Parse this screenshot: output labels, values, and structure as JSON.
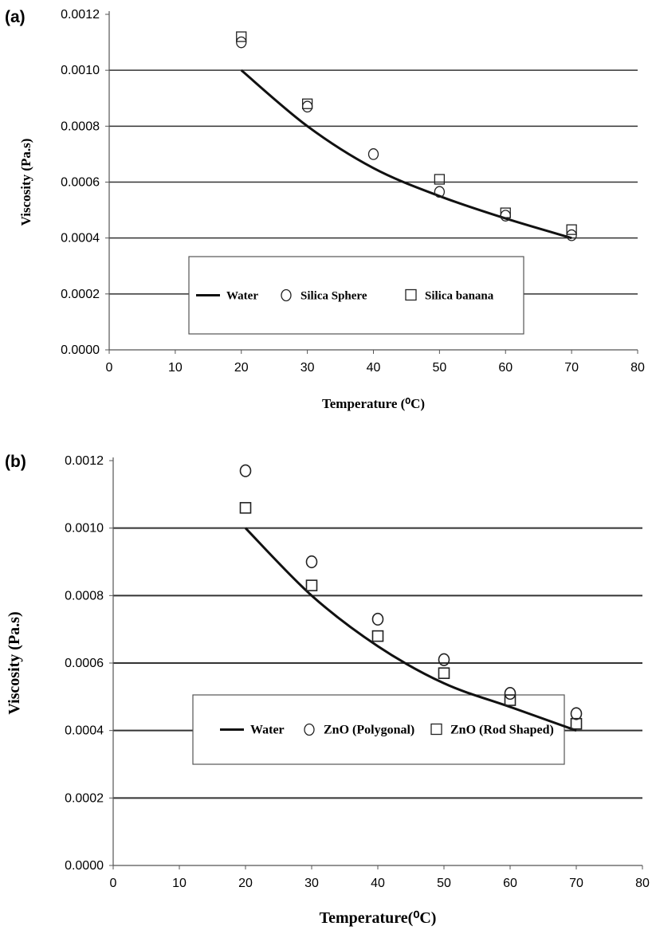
{
  "chart_data": [
    {
      "panel_label": "(a)",
      "type": "line",
      "xlabel": "Temperature (⁰C)",
      "ylabel": "Viscosity (Pa.s)",
      "xlim": [
        0,
        80
      ],
      "ylim": [
        0.0,
        0.0012
      ],
      "xticks": [
        "0",
        "10",
        "20",
        "30",
        "40",
        "50",
        "60",
        "70",
        "80"
      ],
      "yticks": [
        "0.0000",
        "0.0002",
        "0.0004",
        "0.0006",
        "0.0008",
        "0.0010",
        "0.0012"
      ],
      "grid": "horizontal",
      "legend_position": "bottom-center",
      "series": [
        {
          "name": "Water",
          "marker": "line",
          "x": [
            20,
            30,
            40,
            50,
            60,
            70
          ],
          "y": [
            0.001,
            0.0008,
            0.00065,
            0.00055,
            0.00047,
            0.0004
          ]
        },
        {
          "name": "Silica Sphere",
          "marker": "circle",
          "x": [
            20,
            30,
            40,
            50,
            60,
            70
          ],
          "y": [
            0.0011,
            0.00087,
            0.0007,
            0.000565,
            0.00048,
            0.00041
          ]
        },
        {
          "name": "Silica banana",
          "marker": "square",
          "x": [
            20,
            30,
            50,
            60,
            70
          ],
          "y": [
            0.00112,
            0.00088,
            0.00061,
            0.00049,
            0.00043
          ]
        }
      ]
    },
    {
      "panel_label": "(b)",
      "type": "line",
      "xlabel": "Temperature(⁰C)",
      "ylabel": "Viscosity (Pa.s)",
      "xlim": [
        0,
        80
      ],
      "ylim": [
        0.0,
        0.0012
      ],
      "xticks": [
        "0",
        "10",
        "20",
        "30",
        "40",
        "50",
        "60",
        "70",
        "80"
      ],
      "yticks": [
        "0.0000",
        "0.0002",
        "0.0004",
        "0.0006",
        "0.0008",
        "0.0010",
        "0.0012"
      ],
      "grid": "horizontal",
      "legend_position": "bottom-center",
      "series": [
        {
          "name": "Water",
          "marker": "line",
          "x": [
            20,
            30,
            40,
            50,
            60,
            70
          ],
          "y": [
            0.001,
            0.0008,
            0.00065,
            0.00054,
            0.00047,
            0.0004
          ]
        },
        {
          "name": "ZnO (Polygonal)",
          "marker": "circle",
          "x": [
            20,
            30,
            40,
            50,
            60,
            70
          ],
          "y": [
            0.00117,
            0.0009,
            0.00073,
            0.00061,
            0.00051,
            0.00045
          ]
        },
        {
          "name": "ZnO (Rod Shaped)",
          "marker": "square",
          "x": [
            20,
            30,
            40,
            50,
            60,
            70
          ],
          "y": [
            0.00106,
            0.00083,
            0.00068,
            0.00057,
            0.00049,
            0.00042
          ]
        }
      ]
    }
  ]
}
